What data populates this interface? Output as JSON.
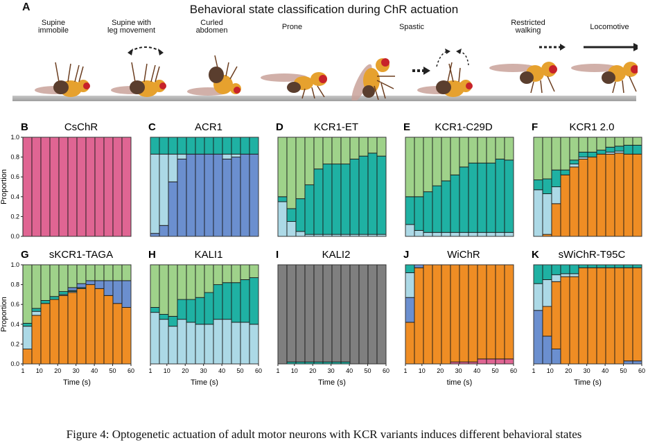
{
  "panelA": {
    "letter": "A",
    "title": "Behavioral state classification during ChR actuation",
    "states": [
      {
        "key": "supine_immobile",
        "label": "Supine\nimmobile",
        "color": "#6b8fcf"
      },
      {
        "key": "supine_leg",
        "label": "Supine with\nleg movement",
        "color": "#acd9e6"
      },
      {
        "key": "curled",
        "label": "Curled\nabdomen",
        "color": "#ef8d24"
      },
      {
        "key": "prone",
        "label": "Prone",
        "color": "#1fb1a3"
      },
      {
        "key": "spastic",
        "label": "Spastic",
        "color": "#e06593"
      },
      {
        "key": "restricted",
        "label": "Restricted\nwalking",
        "color": "#9fd28a"
      },
      {
        "key": "locomotive",
        "label": "Locomotive",
        "color": "#7f7f7f"
      }
    ],
    "icons": [
      "fly-supine-immobile",
      "fly-supine-leg-movement",
      "fly-curled-abdomen",
      "fly-prone",
      "fly-spastic-standing",
      "fly-spastic-flipped",
      "fly-restricted-walking",
      "fly-locomotive"
    ]
  },
  "chart_data": [
    {
      "type": "bar",
      "stacked": true,
      "letter": "B",
      "title": "CsChR",
      "ylabel": "Proportion",
      "xlabel": "",
      "ylim": [
        0,
        1
      ],
      "yticks": [
        "0.0",
        "0.2",
        "0.4",
        "0.6",
        "0.8",
        "1.0"
      ],
      "xticks": [],
      "x": [
        1,
        5,
        10,
        15,
        20,
        25,
        30,
        35,
        40,
        45,
        50,
        55
      ],
      "series": [
        {
          "name": "Spastic",
          "values": [
            1,
            1,
            1,
            1,
            1,
            1,
            1,
            1,
            1,
            1,
            1,
            1
          ]
        }
      ]
    },
    {
      "type": "bar",
      "stacked": true,
      "letter": "C",
      "title": "ACR1",
      "ylabel": "",
      "xlabel": "",
      "ylim": [
        0,
        1
      ],
      "yticks": [],
      "xticks": [],
      "x": [
        1,
        5,
        10,
        15,
        20,
        25,
        30,
        35,
        40,
        45,
        50,
        55
      ],
      "series": [
        {
          "name": "Supine immobile",
          "values": [
            0.03,
            0.11,
            0.55,
            0.78,
            0.83,
            0.83,
            0.83,
            0.83,
            0.78,
            0.8,
            0.83,
            0.83
          ]
        },
        {
          "name": "Supine with leg movement",
          "values": [
            0.8,
            0.72,
            0.28,
            0.05,
            0,
            0,
            0,
            0,
            0.05,
            0.03,
            0,
            0
          ]
        },
        {
          "name": "Prone",
          "values": [
            0.17,
            0.17,
            0.17,
            0.17,
            0.17,
            0.17,
            0.17,
            0.17,
            0.17,
            0.17,
            0.17,
            0.17
          ]
        }
      ]
    },
    {
      "type": "bar",
      "stacked": true,
      "letter": "D",
      "title": "KCR1-ET",
      "ylabel": "",
      "xlabel": "",
      "ylim": [
        0,
        1
      ],
      "yticks": [],
      "xticks": [],
      "x": [
        1,
        5,
        10,
        15,
        20,
        25,
        30,
        35,
        40,
        45,
        50,
        55
      ],
      "series": [
        {
          "name": "Supine with leg movement",
          "values": [
            0.35,
            0.15,
            0.05,
            0.02,
            0.02,
            0.02,
            0.02,
            0.02,
            0.02,
            0.02,
            0.02,
            0.02
          ]
        },
        {
          "name": "Prone",
          "values": [
            0.05,
            0.13,
            0.33,
            0.5,
            0.66,
            0.71,
            0.71,
            0.71,
            0.76,
            0.79,
            0.82,
            0.79
          ]
        },
        {
          "name": "Restricted walking",
          "values": [
            0.6,
            0.72,
            0.62,
            0.48,
            0.32,
            0.27,
            0.27,
            0.27,
            0.22,
            0.19,
            0.16,
            0.19
          ]
        }
      ]
    },
    {
      "type": "bar",
      "stacked": true,
      "letter": "E",
      "title": "KCR1-C29D",
      "ylabel": "",
      "xlabel": "",
      "ylim": [
        0,
        1
      ],
      "yticks": [],
      "xticks": [],
      "x": [
        1,
        5,
        10,
        15,
        20,
        25,
        30,
        35,
        40,
        45,
        50,
        55
      ],
      "series": [
        {
          "name": "Supine with leg movement",
          "values": [
            0.12,
            0.06,
            0.04,
            0.04,
            0.04,
            0.04,
            0.04,
            0.04,
            0.04,
            0.04,
            0.04,
            0.04
          ]
        },
        {
          "name": "Prone",
          "values": [
            0.28,
            0.34,
            0.41,
            0.47,
            0.52,
            0.58,
            0.66,
            0.7,
            0.7,
            0.7,
            0.74,
            0.73
          ]
        },
        {
          "name": "Restricted walking",
          "values": [
            0.6,
            0.6,
            0.55,
            0.49,
            0.44,
            0.38,
            0.3,
            0.26,
            0.26,
            0.26,
            0.22,
            0.23
          ]
        }
      ]
    },
    {
      "type": "bar",
      "stacked": true,
      "letter": "F",
      "title": "KCR1 2.0",
      "ylabel": "",
      "xlabel": "",
      "ylim": [
        0,
        1
      ],
      "yticks": [],
      "xticks": [],
      "x": [
        1,
        5,
        10,
        15,
        20,
        25,
        30,
        35,
        40,
        45,
        50,
        55
      ],
      "series": [
        {
          "name": "Curled abdomen",
          "values": [
            0,
            0.02,
            0.33,
            0.62,
            0.7,
            0.78,
            0.8,
            0.83,
            0.83,
            0.84,
            0.83,
            0.83
          ]
        },
        {
          "name": "Supine with leg movement",
          "values": [
            0.47,
            0.41,
            0.17,
            0,
            0.03,
            0.02,
            0,
            0,
            0.02,
            0.02,
            0,
            0
          ]
        },
        {
          "name": "Prone",
          "values": [
            0.1,
            0.15,
            0.17,
            0.05,
            0.04,
            0.05,
            0.05,
            0.04,
            0.05,
            0.05,
            0.09,
            0.09
          ]
        },
        {
          "name": "Restricted walking",
          "values": [
            0.43,
            0.42,
            0.33,
            0.33,
            0.23,
            0.15,
            0.15,
            0.13,
            0.1,
            0.09,
            0.08,
            0.08
          ]
        }
      ]
    },
    {
      "type": "bar",
      "stacked": true,
      "letter": "G",
      "title": "sKCR1-TAGA",
      "ylabel": "Proportion",
      "xlabel": "Time (s)",
      "ylim": [
        0,
        1
      ],
      "yticks": [
        "0.0",
        "0.2",
        "0.4",
        "0.6",
        "0.8",
        "1.0"
      ],
      "xticks": [
        "1",
        "10",
        "20",
        "30",
        "40",
        "50",
        "60"
      ],
      "x": [
        1,
        5,
        10,
        15,
        20,
        25,
        30,
        35,
        40,
        45,
        50,
        55
      ],
      "series": [
        {
          "name": "Curled abdomen",
          "values": [
            0.15,
            0.49,
            0.61,
            0.65,
            0.69,
            0.72,
            0.76,
            0.8,
            0.76,
            0.69,
            0.61,
            0.57
          ]
        },
        {
          "name": "Supine with leg movement",
          "values": [
            0.23,
            0.04,
            0,
            0,
            0.01,
            0.01,
            0,
            0,
            0,
            0,
            0,
            0
          ]
        },
        {
          "name": "Prone",
          "values": [
            0.03,
            0.03,
            0.03,
            0.03,
            0.03,
            0.01,
            0.01,
            0,
            0,
            0,
            0,
            0
          ]
        },
        {
          "name": "Supine immobile",
          "values": [
            0,
            0,
            0,
            0,
            0,
            0.03,
            0.04,
            0.04,
            0.08,
            0.15,
            0.23,
            0.27
          ]
        },
        {
          "name": "Restricted walking",
          "values": [
            0.59,
            0.44,
            0.36,
            0.32,
            0.27,
            0.23,
            0.19,
            0.16,
            0.16,
            0.16,
            0.16,
            0.16
          ]
        }
      ]
    },
    {
      "type": "bar",
      "stacked": true,
      "letter": "H",
      "title": "KALI1",
      "ylabel": "",
      "xlabel": "Time (s)",
      "ylim": [
        0,
        1
      ],
      "yticks": [],
      "xticks": [
        "1",
        "10",
        "20",
        "30",
        "40",
        "50",
        "60"
      ],
      "x": [
        1,
        5,
        10,
        15,
        20,
        25,
        30,
        35,
        40,
        45,
        50,
        55
      ],
      "series": [
        {
          "name": "Supine with leg movement",
          "values": [
            0.52,
            0.45,
            0.38,
            0.45,
            0.42,
            0.4,
            0.4,
            0.45,
            0.45,
            0.42,
            0.42,
            0.4
          ]
        },
        {
          "name": "Prone",
          "values": [
            0.05,
            0.05,
            0.1,
            0.2,
            0.23,
            0.27,
            0.32,
            0.35,
            0.37,
            0.4,
            0.43,
            0.47
          ]
        },
        {
          "name": "Restricted walking",
          "values": [
            0.43,
            0.5,
            0.52,
            0.35,
            0.35,
            0.33,
            0.28,
            0.2,
            0.18,
            0.18,
            0.15,
            0.13
          ]
        }
      ]
    },
    {
      "type": "bar",
      "stacked": true,
      "letter": "I",
      "title": "KALI2",
      "ylabel": "",
      "xlabel": "Time (s)",
      "ylim": [
        0,
        1
      ],
      "yticks": [],
      "xticks": [
        "1",
        "10",
        "20",
        "30",
        "40",
        "50",
        "60"
      ],
      "x": [
        1,
        5,
        10,
        15,
        20,
        25,
        30,
        35,
        40,
        45,
        50,
        55
      ],
      "series": [
        {
          "name": "Prone",
          "values": [
            0,
            0.02,
            0.02,
            0.02,
            0.02,
            0.02,
            0.02,
            0.02,
            0,
            0,
            0,
            0
          ]
        },
        {
          "name": "Locomotive",
          "values": [
            1,
            0.98,
            0.98,
            0.98,
            0.98,
            0.98,
            0.98,
            0.98,
            1,
            1,
            1,
            1
          ]
        }
      ]
    },
    {
      "type": "bar",
      "stacked": true,
      "letter": "J",
      "title": "WiChR",
      "ylabel": "",
      "xlabel": "time (s)",
      "ylim": [
        0,
        1
      ],
      "yticks": [],
      "xticks": [
        "1",
        "10",
        "20",
        "30",
        "40",
        "50",
        "60"
      ],
      "x": [
        1,
        5,
        10,
        15,
        20,
        25,
        30,
        35,
        40,
        45,
        50,
        55
      ],
      "series": [
        {
          "name": "Spastic",
          "values": [
            0,
            0,
            0,
            0,
            0,
            0.02,
            0.02,
            0.02,
            0.05,
            0.05,
            0.05,
            0.05
          ]
        },
        {
          "name": "Curled abdomen",
          "values": [
            0.42,
            0.97,
            1,
            1,
            1,
            0.98,
            0.98,
            0.98,
            0.95,
            0.95,
            0.95,
            0.95
          ]
        },
        {
          "name": "Supine immobile",
          "values": [
            0.25,
            0.03,
            0,
            0,
            0,
            0,
            0,
            0,
            0,
            0,
            0,
            0
          ]
        },
        {
          "name": "Supine with leg movement",
          "values": [
            0.25,
            0,
            0,
            0,
            0,
            0,
            0,
            0,
            0,
            0,
            0,
            0
          ]
        },
        {
          "name": "Prone",
          "values": [
            0.08,
            0,
            0,
            0,
            0,
            0,
            0,
            0,
            0,
            0,
            0,
            0
          ]
        }
      ]
    },
    {
      "type": "bar",
      "stacked": true,
      "letter": "K",
      "title": "sWiChR-T95C",
      "ylabel": "",
      "xlabel": "Time (s)",
      "ylim": [
        0,
        1
      ],
      "yticks": [],
      "xticks": [
        "1",
        "10",
        "20",
        "30",
        "40",
        "50",
        "60"
      ],
      "x": [
        1,
        5,
        10,
        15,
        20,
        25,
        30,
        35,
        40,
        45,
        50,
        55
      ],
      "series": [
        {
          "name": "Supine immobile",
          "values": [
            0.54,
            0.28,
            0.15,
            0,
            0,
            0,
            0,
            0,
            0,
            0,
            0.03,
            0.03
          ]
        },
        {
          "name": "Curled abdomen",
          "values": [
            0,
            0.3,
            0.68,
            0.88,
            0.88,
            0.97,
            0.97,
            0.97,
            0.97,
            0.97,
            0.94,
            0.94
          ]
        },
        {
          "name": "Supine with leg movement",
          "values": [
            0.27,
            0.27,
            0.07,
            0.03,
            0.03,
            0,
            0,
            0,
            0,
            0,
            0,
            0
          ]
        },
        {
          "name": "Prone",
          "values": [
            0.19,
            0.15,
            0.1,
            0.09,
            0.09,
            0.03,
            0.03,
            0.03,
            0.03,
            0.03,
            0.03,
            0.03
          ]
        }
      ]
    }
  ],
  "caption": "Figure 4: Optogenetic actuation of adult motor neurons with KCR variants induces different behavioral states"
}
